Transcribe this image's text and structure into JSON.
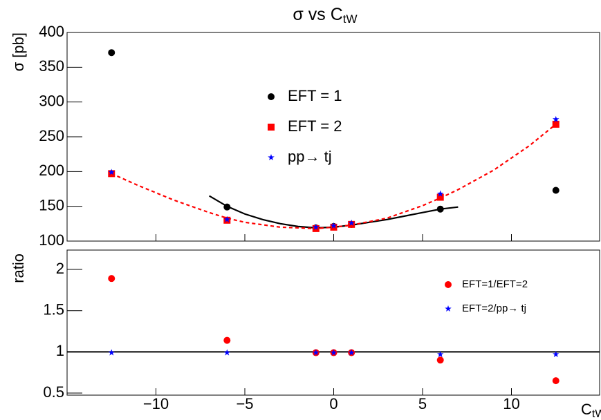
{
  "title": "σ vs C",
  "title_sub": "tW",
  "chart_data": [
    {
      "type": "scatter",
      "ylabel": "σ [pb]",
      "xlim": [
        -15,
        15
      ],
      "ylim": [
        100,
        400
      ],
      "yticks": [
        100,
        150,
        200,
        250,
        300,
        350,
        400
      ],
      "series": [
        {
          "name": "EFT = 1",
          "marker": "circle",
          "color": "#000000",
          "x": [
            -12.5,
            -6,
            -1,
            0,
            1,
            6,
            12.5
          ],
          "values": [
            371,
            149,
            119,
            121,
            124,
            146,
            173
          ]
        },
        {
          "name": "EFT = 2",
          "marker": "square",
          "color": "#ff0000",
          "x": [
            -12.5,
            -6,
            -1,
            0,
            1,
            6,
            12.5
          ],
          "values": [
            197,
            130,
            118,
            120,
            124,
            163,
            268
          ]
        },
        {
          "name": "pp→ tj",
          "marker": "star",
          "color": "#0000ff",
          "x": [
            -12.5,
            -6,
            -1,
            0,
            1,
            6,
            12.5
          ],
          "values": [
            199,
            131,
            120,
            122,
            126,
            168,
            275
          ]
        }
      ],
      "fits": [
        {
          "color": "#000000",
          "dashed": false,
          "x": [
            -7,
            -6,
            -5,
            -4,
            -3,
            -2,
            -1,
            0,
            1,
            2,
            3,
            4,
            5,
            6,
            7
          ],
          "values": [
            165,
            150,
            139,
            131,
            125,
            121,
            119,
            120,
            123,
            127,
            131,
            136,
            141,
            146,
            149
          ]
        },
        {
          "color": "#ff0000",
          "dashed": true,
          "x": [
            -12.5,
            -11,
            -9,
            -7,
            -6,
            -5,
            -3,
            -1,
            0,
            1,
            3,
            5,
            6,
            7,
            9,
            11,
            12.5
          ],
          "values": [
            197,
            180,
            159,
            141,
            133,
            127,
            120,
            118,
            120,
            123,
            133,
            151,
            162,
            174,
            202,
            237,
            268
          ]
        }
      ]
    },
    {
      "type": "scatter",
      "ylabel": "ratio",
      "xlabel": "C",
      "xlabel_sub": "tW",
      "xlim": [
        -15,
        15
      ],
      "ylim": [
        0.475,
        2.235
      ],
      "xticks": [
        {
          "value": -10,
          "label": "−10"
        },
        {
          "value": -5,
          "label": "−5"
        },
        0,
        5,
        10
      ],
      "yticks": [
        0.5,
        1,
        1.5,
        2
      ],
      "reference_line": 1,
      "series": [
        {
          "name": "EFT=1/EFT=2",
          "marker": "circle",
          "color": "#ff0000",
          "x": [
            -12.5,
            -6,
            -1,
            0,
            1,
            6,
            12.5
          ],
          "values": [
            1.89,
            1.14,
            0.99,
            0.99,
            0.99,
            0.9,
            0.65
          ]
        },
        {
          "name": "EFT=2/pp→ tj",
          "marker": "star",
          "color": "#0000ff",
          "x": [
            -12.5,
            -6,
            -1,
            0,
            1,
            6,
            12.5
          ],
          "values": [
            0.99,
            0.99,
            0.99,
            0.99,
            0.99,
            0.97,
            0.97
          ]
        }
      ]
    }
  ]
}
